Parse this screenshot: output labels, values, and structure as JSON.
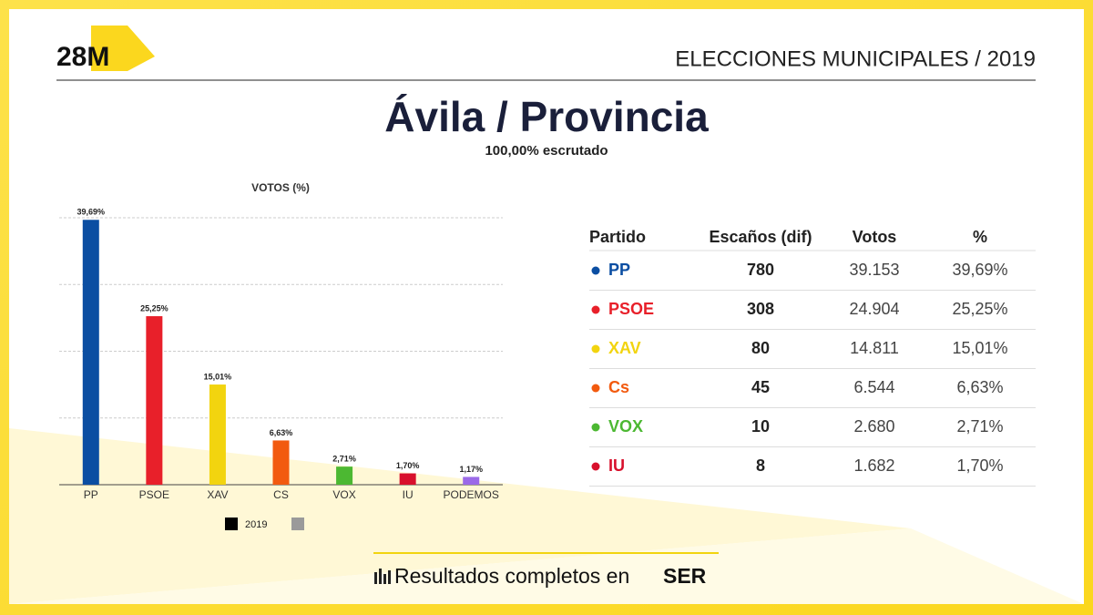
{
  "header": {
    "logo": "28M",
    "section": "ELECCIONES MUNICIPALES / 2019",
    "title": "Ávila / Provincia",
    "subtitle": "100,00% escrutado"
  },
  "chart_data": {
    "type": "bar",
    "title": "VOTOS (%)",
    "categories": [
      "PP",
      "PSOE",
      "XAV",
      "CS",
      "VOX",
      "IU",
      "PODEMOS"
    ],
    "values": [
      39.69,
      25.25,
      15.01,
      6.63,
      2.71,
      1.7,
      1.17
    ],
    "value_labels": [
      "39,69%",
      "25,25%",
      "15,01%",
      "6,63%",
      "2,71%",
      "1,70%",
      "1,17%"
    ],
    "colors": [
      "#0b4ea2",
      "#e8202a",
      "#f2d40f",
      "#f25a0f",
      "#4cb832",
      "#d8102c",
      "#9b6ae8"
    ],
    "ylim": [
      0,
      40
    ],
    "yticks": [
      0,
      10,
      20,
      30,
      40
    ],
    "grid": true,
    "legend": [
      {
        "name": "2019",
        "color": "#000000"
      },
      {
        "color": "#9a9a9a"
      }
    ]
  },
  "table": {
    "columns": [
      "Partido",
      "Escaños (dif)",
      "Votos",
      "%"
    ],
    "rows": [
      {
        "party": "PP",
        "color": "#0b4ea2",
        "seats": 780,
        "votes": "39.153",
        "pct": "39,69%"
      },
      {
        "party": "PSOE",
        "color": "#e8202a",
        "seats": 308,
        "votes": "24.904",
        "pct": "25,25%"
      },
      {
        "party": "XAV",
        "color": "#f2d40f",
        "seats": 80,
        "votes": "14.811",
        "pct": "15,01%"
      },
      {
        "party": "Cs",
        "color": "#f25a0f",
        "seats": 45,
        "votes": "6.544",
        "pct": "6,63%"
      },
      {
        "party": "VOX",
        "color": "#4cb832",
        "seats": 10,
        "votes": "2.680",
        "pct": "2,71%"
      },
      {
        "party": "IU",
        "color": "#d8102c",
        "seats": 8,
        "votes": "1.682",
        "pct": "1,70%"
      }
    ]
  },
  "footer": {
    "text": "Resultados completos en",
    "brand": "SER"
  }
}
